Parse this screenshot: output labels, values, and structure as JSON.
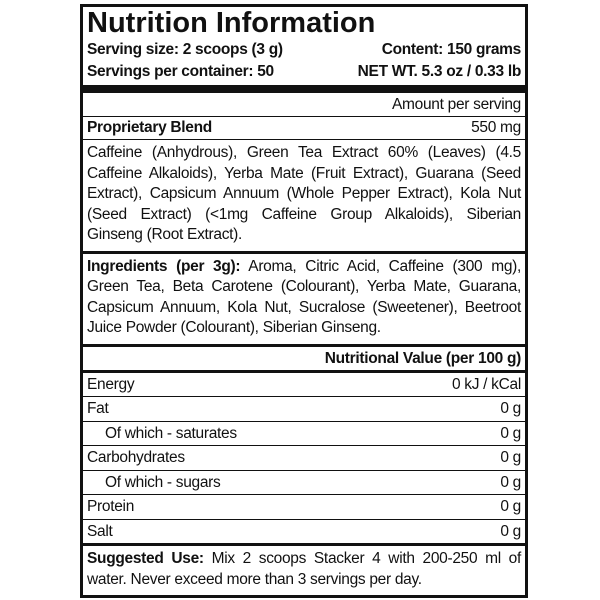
{
  "header": {
    "title": "Nutrition Information"
  },
  "serving": {
    "size": "Serving size: 2 scoops (3 g)",
    "content": "Content: 150 grams",
    "per_container": "Servings per container: 50",
    "net_wt": "NET WT. 5.3 oz / 0.33 lb"
  },
  "amount_header": "Amount per serving",
  "blend": {
    "name": "Proprietary Blend",
    "amount": "550 mg",
    "description": "Caffeine (Anhydrous), Green Tea Extract 60% (Leaves) (4.5 Caffeine Alkaloids), Yerba Mate (Fruit Extract), Guarana (Seed Extract), Capsicum Annuum (Whole Pepper Extract), Kola Nut (Seed Extract) (<1mg Caffeine Group Alkaloids), Siberian Ginseng (Root Extract)."
  },
  "ingredients": {
    "label": "Ingredients (per 3g):",
    "text": "Aroma, Citric Acid, Caffeine (300 mg), Green Tea, Beta Carotene (Colourant), Yerba Mate, Guarana, Capsicum Annuum, Kola Nut, Sucralose (Sweetener), Beetroot Juice Powder (Colourant), Siberian Ginseng."
  },
  "nutrition": {
    "header": "Nutritional Value (per 100 g)",
    "rows": [
      {
        "label": "Energy",
        "value": "0 kJ / kCal"
      },
      {
        "label": "Fat",
        "value": "0 g"
      },
      {
        "label": "Of which - saturates",
        "value": "0 g"
      },
      {
        "label": "Carbohydrates",
        "value": "0 g"
      },
      {
        "label": "Of which - sugars",
        "value": "0 g"
      },
      {
        "label": "Protein",
        "value": "0 g"
      },
      {
        "label": "Salt",
        "value": "0 g"
      }
    ]
  },
  "suggested": {
    "label": "Suggested Use:",
    "text": "Mix 2 scoops Stacker 4 with 200-250 ml of water. Never exceed more than 3 servings per day."
  }
}
